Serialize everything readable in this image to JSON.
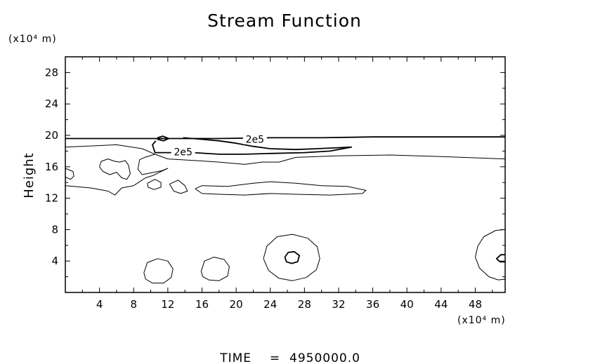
{
  "chart_data": {
    "type": "contour",
    "title": "Stream Function",
    "xlabel": "(x10⁴ m)",
    "ylabel": "Height",
    "yunit": "(x10⁴ m)",
    "xlim": [
      0,
      51.5
    ],
    "ylim": [
      0,
      30
    ],
    "x_ticks": [
      4,
      8,
      12,
      16,
      20,
      24,
      28,
      32,
      36,
      40,
      44,
      48
    ],
    "y_ticks": [
      4,
      8,
      12,
      16,
      20,
      24,
      28
    ],
    "contour_labels": [
      {
        "text": "2e5",
        "x": 22.2,
        "y": 19.5
      },
      {
        "text": "2e5",
        "x": 13.8,
        "y": 17.9
      }
    ],
    "contours": [
      {
        "level": "thick",
        "points": [
          [
            0,
            19.6
          ],
          [
            6,
            19.6
          ],
          [
            12,
            19.6
          ],
          [
            18,
            19.6
          ],
          [
            24,
            19.7
          ],
          [
            30,
            19.7
          ],
          [
            36,
            19.8
          ],
          [
            42,
            19.8
          ],
          [
            48,
            19.8
          ],
          [
            51.5,
            19.8
          ]
        ]
      },
      {
        "level": "thick",
        "points": [
          [
            13.8,
            19.7
          ],
          [
            16,
            19.5
          ],
          [
            18,
            19.3
          ],
          [
            20,
            19.0
          ],
          [
            22,
            18.6
          ],
          [
            24,
            18.3
          ],
          [
            27,
            18.2
          ],
          [
            29.5,
            18.3
          ],
          [
            31.5,
            18.4
          ],
          [
            33.5,
            18.5
          ],
          [
            31,
            18.0
          ],
          [
            28,
            17.8
          ],
          [
            24,
            17.7
          ],
          [
            21,
            17.6
          ],
          [
            18,
            17.6
          ],
          [
            15,
            17.8
          ],
          [
            13,
            17.8
          ],
          [
            10.5,
            17.8
          ],
          [
            10.2,
            18.8
          ],
          [
            10.6,
            19.3
          ]
        ]
      },
      {
        "level": "thick",
        "points": [
          [
            10.8,
            19.7
          ],
          [
            11.4,
            19.9
          ],
          [
            12.1,
            19.6
          ],
          [
            11.5,
            19.3
          ],
          [
            10.8,
            19.5
          ],
          [
            10.8,
            19.7
          ]
        ]
      },
      {
        "level": "thin",
        "points": [
          [
            0,
            18.5
          ],
          [
            6,
            18.8
          ],
          [
            9,
            18.3
          ],
          [
            10.5,
            17.6
          ],
          [
            12,
            17.0
          ],
          [
            15,
            16.8
          ],
          [
            18,
            16.6
          ],
          [
            21,
            16.3
          ],
          [
            23,
            16.6
          ],
          [
            25,
            16.6
          ],
          [
            27,
            17.2
          ],
          [
            32,
            17.4
          ],
          [
            38,
            17.5
          ],
          [
            44,
            17.3
          ],
          [
            51.5,
            17.0
          ]
        ]
      },
      {
        "level": "thin",
        "points": [
          [
            4,
            16.0
          ],
          [
            4.4,
            15.4
          ],
          [
            5.2,
            15.0
          ],
          [
            6,
            15.3
          ],
          [
            6.6,
            14.6
          ],
          [
            7.2,
            14.4
          ],
          [
            7.6,
            15.1
          ],
          [
            7.4,
            16.2
          ],
          [
            7.0,
            16.8
          ],
          [
            6.4,
            16.6
          ],
          [
            5.8,
            16.7
          ],
          [
            5.0,
            17.0
          ],
          [
            4.2,
            16.7
          ],
          [
            4,
            16.0
          ]
        ]
      },
      {
        "level": "thin",
        "points": [
          [
            0,
            15.8
          ],
          [
            0.9,
            15.4
          ],
          [
            1.0,
            14.8
          ],
          [
            0.6,
            14.4
          ],
          [
            0,
            14.7
          ]
        ]
      },
      {
        "level": "thin",
        "points": [
          [
            0,
            13.6
          ],
          [
            3,
            13.3
          ],
          [
            5,
            12.9
          ],
          [
            5.8,
            12.4
          ],
          [
            6.6,
            13.3
          ],
          [
            8,
            13.6
          ],
          [
            9.4,
            14.6
          ],
          [
            10.3,
            14.9
          ],
          [
            11.2,
            15.4
          ],
          [
            12,
            15.8
          ],
          [
            11.3,
            15.5
          ],
          [
            9.9,
            15.2
          ],
          [
            9.0,
            15.0
          ],
          [
            8.5,
            15.7
          ],
          [
            8.7,
            16.9
          ],
          [
            9.3,
            17.2
          ],
          [
            10.5,
            17.6
          ]
        ]
      },
      {
        "level": "thin",
        "points": [
          [
            9.6,
            13.9
          ],
          [
            10.5,
            14.4
          ],
          [
            11.2,
            14.0
          ],
          [
            11.2,
            13.4
          ],
          [
            10.4,
            13.1
          ],
          [
            9.7,
            13.4
          ],
          [
            9.6,
            13.9
          ]
        ]
      },
      {
        "level": "thin",
        "points": [
          [
            12.2,
            13.8
          ],
          [
            13.2,
            14.3
          ],
          [
            14,
            13.6
          ],
          [
            14.3,
            12.9
          ],
          [
            13.5,
            12.6
          ],
          [
            12.7,
            12.9
          ],
          [
            12.2,
            13.8
          ]
        ]
      },
      {
        "level": "thin",
        "points": [
          [
            15.2,
            13.2
          ],
          [
            16,
            13.6
          ],
          [
            19,
            13.5
          ],
          [
            22,
            13.9
          ],
          [
            24,
            14.1
          ],
          [
            27,
            13.9
          ],
          [
            30,
            13.6
          ],
          [
            33,
            13.5
          ],
          [
            35.2,
            13.0
          ],
          [
            34.8,
            12.6
          ],
          [
            31,
            12.4
          ],
          [
            27,
            12.5
          ],
          [
            24,
            12.6
          ],
          [
            21,
            12.4
          ],
          [
            18,
            12.5
          ],
          [
            16,
            12.6
          ],
          [
            15.2,
            13.2
          ]
        ]
      },
      {
        "level": "thin",
        "points": [
          [
            9.2,
            2.5
          ],
          [
            9.6,
            3.8
          ],
          [
            10.8,
            4.3
          ],
          [
            12.0,
            4.0
          ],
          [
            12.6,
            3.0
          ],
          [
            12.4,
            1.9
          ],
          [
            11.5,
            1.2
          ],
          [
            10.2,
            1.2
          ],
          [
            9.4,
            1.7
          ],
          [
            9.2,
            2.5
          ]
        ]
      },
      {
        "level": "thin",
        "points": [
          [
            15.9,
            2.7
          ],
          [
            16.3,
            4.0
          ],
          [
            17.4,
            4.5
          ],
          [
            18.6,
            4.2
          ],
          [
            19.2,
            3.3
          ],
          [
            19.0,
            2.1
          ],
          [
            18.0,
            1.5
          ],
          [
            16.8,
            1.6
          ],
          [
            16.1,
            2.0
          ],
          [
            15.9,
            2.7
          ]
        ]
      },
      {
        "level": "thin",
        "points": [
          [
            23.2,
            4.3
          ],
          [
            23.6,
            5.9
          ],
          [
            24.8,
            7.1
          ],
          [
            26.6,
            7.4
          ],
          [
            28.4,
            6.9
          ],
          [
            29.5,
            5.8
          ],
          [
            29.8,
            4.3
          ],
          [
            29.4,
            2.9
          ],
          [
            28.2,
            1.9
          ],
          [
            26.6,
            1.5
          ],
          [
            25.0,
            1.8
          ],
          [
            23.8,
            2.8
          ],
          [
            23.2,
            4.3
          ]
        ]
      },
      {
        "level": "thick",
        "points": [
          [
            25.7,
            4.5
          ],
          [
            26.1,
            5.1
          ],
          [
            26.8,
            5.2
          ],
          [
            27.4,
            4.7
          ],
          [
            27.2,
            3.9
          ],
          [
            26.5,
            3.7
          ],
          [
            25.9,
            3.9
          ],
          [
            25.7,
            4.5
          ]
        ]
      },
      {
        "level": "thin",
        "points": [
          [
            51.5,
            8.0
          ],
          [
            50.4,
            7.9
          ],
          [
            49.0,
            7.1
          ],
          [
            48.3,
            5.9
          ],
          [
            48.0,
            4.5
          ],
          [
            48.5,
            3.1
          ],
          [
            49.6,
            2.0
          ],
          [
            50.7,
            1.6
          ],
          [
            51.5,
            1.7
          ]
        ]
      },
      {
        "level": "thick",
        "points": [
          [
            51.5,
            4.8
          ],
          [
            51.0,
            4.8
          ],
          [
            50.5,
            4.3
          ],
          [
            50.9,
            3.9
          ],
          [
            51.5,
            3.9
          ]
        ]
      }
    ],
    "grid": false,
    "legend": "none"
  },
  "footer": {
    "time_label": "TIME",
    "equals": "=",
    "time_value": "4950000.0"
  }
}
